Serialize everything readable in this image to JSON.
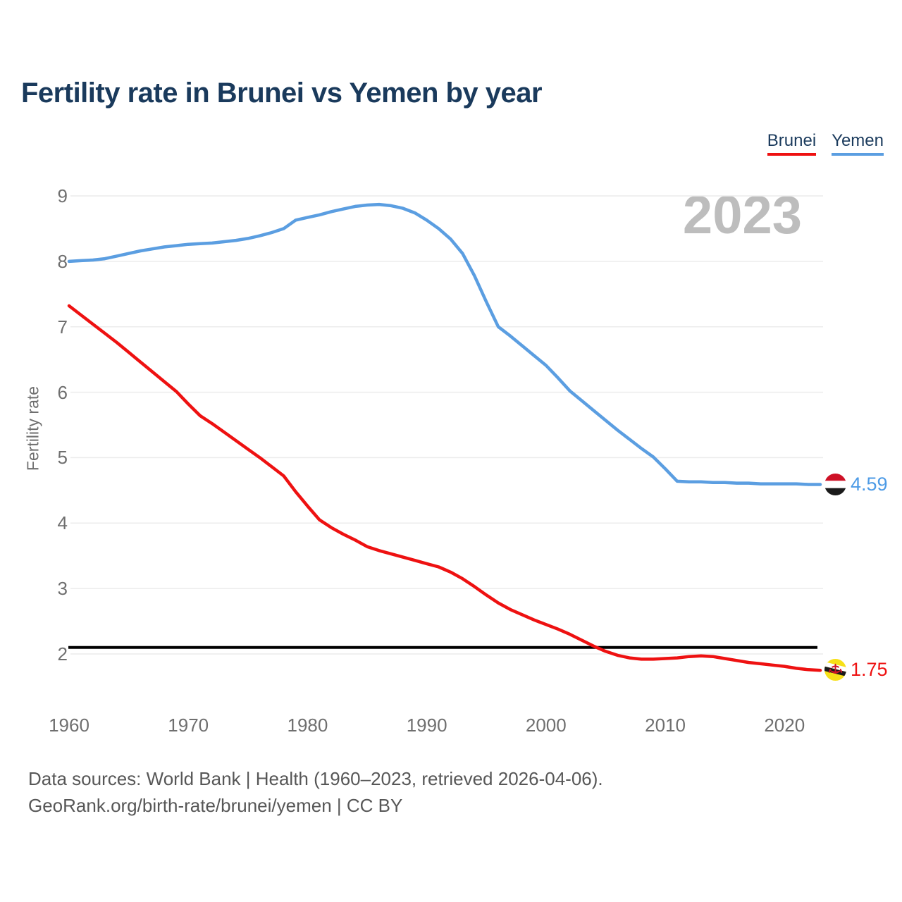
{
  "title": "Fertility rate in Brunei vs Yemen by year",
  "watermark": "2023",
  "legend": {
    "items": [
      {
        "label": "Brunei",
        "color": "#EE1111"
      },
      {
        "label": "Yemen",
        "color": "#5B9EE1"
      }
    ]
  },
  "y_axis": {
    "label": "Fertility rate",
    "ticks": [
      9,
      8,
      7,
      6,
      5,
      4,
      3,
      2
    ]
  },
  "x_axis": {
    "ticks": [
      1960,
      1970,
      1980,
      1990,
      2000,
      2010,
      2020
    ]
  },
  "end_labels": [
    {
      "series": "Yemen",
      "value": "4.59",
      "flag": "yemen-flag",
      "color": "#4D9BE6"
    },
    {
      "series": "Brunei",
      "value": "1.75",
      "flag": "brunei-flag",
      "color": "#EE1111"
    }
  ],
  "footer": {
    "line1": "Data sources: World Bank | Health (1960–2023, retrieved 2026-04-06).",
    "line2": "GeoRank.org/birth-rate/brunei/yemen | CC BY"
  },
  "colors": {
    "brunei_line": "#EE1111",
    "yemen_line": "#5B9EE1",
    "replacement_line": "#000000",
    "gridline": "#ECECEC",
    "title_text": "#1A3A5C",
    "tick_text": "#6F6F6F",
    "watermark_text": "#BDBDBD"
  },
  "chart_data": {
    "type": "line",
    "title": "Fertility rate in Brunei vs Yemen by year",
    "xlabel": "",
    "ylabel": "Fertility rate",
    "xlim": [
      1960,
      2023
    ],
    "ylim": [
      2,
      9
    ],
    "grid": true,
    "legend_position": "top-right",
    "reference_line": {
      "value": 2.1,
      "color": "#000000"
    },
    "x": [
      1960,
      1961,
      1962,
      1963,
      1964,
      1965,
      1966,
      1967,
      1968,
      1969,
      1970,
      1971,
      1972,
      1973,
      1974,
      1975,
      1976,
      1977,
      1978,
      1979,
      1980,
      1981,
      1982,
      1983,
      1984,
      1985,
      1986,
      1987,
      1988,
      1989,
      1990,
      1991,
      1992,
      1993,
      1994,
      1995,
      1996,
      1997,
      1998,
      1999,
      2000,
      2001,
      2002,
      2003,
      2004,
      2005,
      2006,
      2007,
      2008,
      2009,
      2010,
      2011,
      2012,
      2013,
      2014,
      2015,
      2016,
      2017,
      2018,
      2019,
      2020,
      2021,
      2022,
      2023
    ],
    "series": [
      {
        "name": "Brunei",
        "color": "#EE1111",
        "end_value": 1.75,
        "values": [
          7.32,
          7.18,
          7.04,
          6.9,
          6.76,
          6.61,
          6.46,
          6.31,
          6.16,
          6.01,
          5.82,
          5.64,
          5.52,
          5.39,
          5.26,
          5.13,
          5.0,
          4.86,
          4.72,
          4.48,
          4.26,
          4.05,
          3.93,
          3.83,
          3.74,
          3.64,
          3.58,
          3.53,
          3.48,
          3.43,
          3.38,
          3.33,
          3.25,
          3.15,
          3.03,
          2.9,
          2.78,
          2.68,
          2.6,
          2.52,
          2.45,
          2.38,
          2.3,
          2.21,
          2.12,
          2.04,
          1.98,
          1.94,
          1.92,
          1.92,
          1.93,
          1.94,
          1.96,
          1.97,
          1.96,
          1.93,
          1.9,
          1.87,
          1.85,
          1.83,
          1.81,
          1.78,
          1.76,
          1.75
        ]
      },
      {
        "name": "Yemen",
        "color": "#5B9EE1",
        "end_value": 4.59,
        "values": [
          8.0,
          8.01,
          8.02,
          8.04,
          8.08,
          8.12,
          8.16,
          8.19,
          8.22,
          8.24,
          8.26,
          8.27,
          8.28,
          8.3,
          8.32,
          8.35,
          8.39,
          8.44,
          8.5,
          8.63,
          8.67,
          8.71,
          8.76,
          8.8,
          8.84,
          8.86,
          8.87,
          8.85,
          8.81,
          8.74,
          8.63,
          8.5,
          8.34,
          8.12,
          7.78,
          7.38,
          7.0,
          6.86,
          6.71,
          6.56,
          6.41,
          6.22,
          6.02,
          5.87,
          5.72,
          5.57,
          5.42,
          5.28,
          5.14,
          5.01,
          4.83,
          4.64,
          4.63,
          4.63,
          4.62,
          4.62,
          4.61,
          4.61,
          4.6,
          4.6,
          4.6,
          4.6,
          4.59,
          4.59
        ]
      }
    ]
  }
}
